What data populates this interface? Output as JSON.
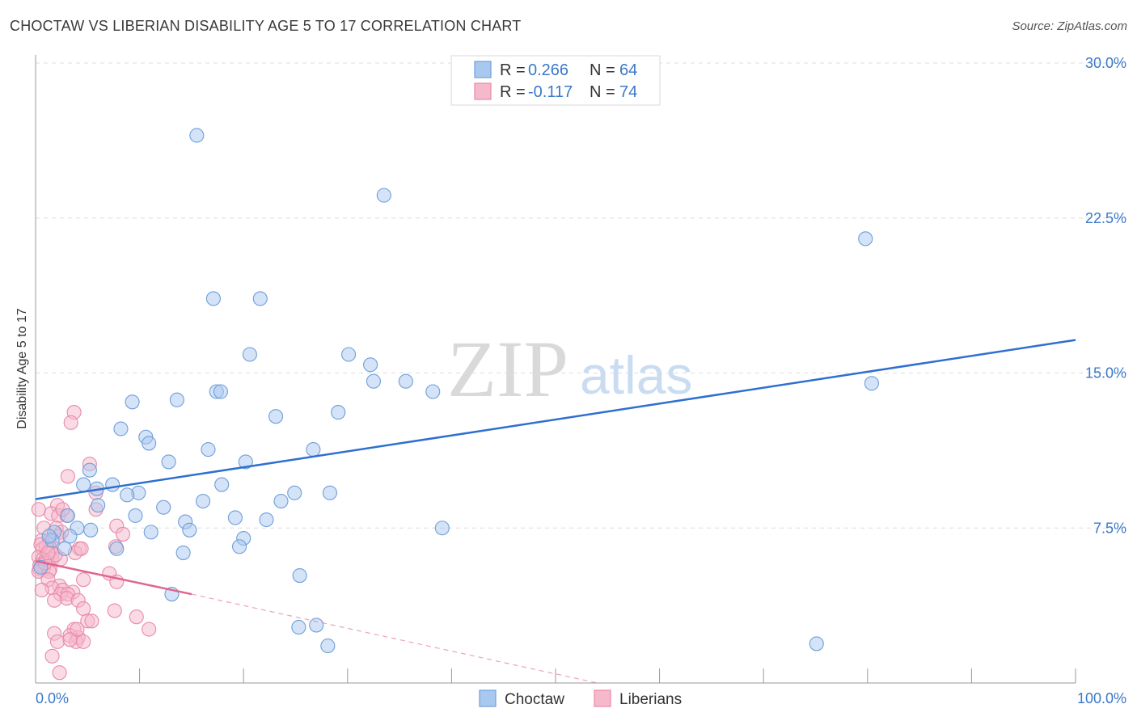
{
  "title": "CHOCTAW VS LIBERIAN DISABILITY AGE 5 TO 17 CORRELATION CHART",
  "source": "Source: ZipAtlas.com",
  "watermark": {
    "zip": "ZIP",
    "atlas": "atlas"
  },
  "legend": {
    "r_label": "R =",
    "n_label": "N =",
    "rows": [
      {
        "r": "0.266",
        "n": "64"
      },
      {
        "r": "-0.117",
        "n": "74"
      }
    ]
  },
  "colors": {
    "choctaw_fill": "#a9c8ef",
    "choctaw_stroke": "#6f9fd8",
    "choctaw_line": "#2e6fd0",
    "liberian_fill": "#f6b8cb",
    "liberian_stroke": "#e88aa8",
    "liberian_line": "#e0648e",
    "tick_label": "#3b78c9",
    "grid": "#dddddd"
  },
  "chart_data": {
    "type": "scatter",
    "title": "CHOCTAW VS LIBERIAN DISABILITY AGE 5 TO 17 CORRELATION CHART",
    "xlabel": "",
    "ylabel": "Disability Age 5 to 17",
    "xlim": [
      0,
      100
    ],
    "ylim": [
      0,
      30
    ],
    "x_tick_labels": [
      "0.0%",
      "100.0%"
    ],
    "y_ticks": [
      7.5,
      15.0,
      22.5,
      30.0
    ],
    "y_tick_labels": [
      "7.5%",
      "15.0%",
      "22.5%",
      "30.0%"
    ],
    "grid": true,
    "legend_position": "top-center",
    "series": [
      {
        "name": "Choctaw",
        "r": 0.266,
        "n": 64,
        "trend": {
          "x": [
            0,
            100
          ],
          "y": [
            8.9,
            16.6
          ],
          "style": "solid"
        },
        "points": [
          [
            15.5,
            26.5
          ],
          [
            33.5,
            23.6
          ],
          [
            79.8,
            21.5
          ],
          [
            17.1,
            18.6
          ],
          [
            21.6,
            18.6
          ],
          [
            20.6,
            15.9
          ],
          [
            30.1,
            15.9
          ],
          [
            32.2,
            15.4
          ],
          [
            32.5,
            14.6
          ],
          [
            35.6,
            14.6
          ],
          [
            38.2,
            14.1
          ],
          [
            80.4,
            14.5
          ],
          [
            17.4,
            14.1
          ],
          [
            17.8,
            14.1
          ],
          [
            9.3,
            13.6
          ],
          [
            13.6,
            13.7
          ],
          [
            23.1,
            12.9
          ],
          [
            29.1,
            13.1
          ],
          [
            8.2,
            12.3
          ],
          [
            10.6,
            11.9
          ],
          [
            10.9,
            11.6
          ],
          [
            16.6,
            11.3
          ],
          [
            26.7,
            11.3
          ],
          [
            12.8,
            10.7
          ],
          [
            20.2,
            10.7
          ],
          [
            5.2,
            10.3
          ],
          [
            4.6,
            9.6
          ],
          [
            7.4,
            9.6
          ],
          [
            5.9,
            9.4
          ],
          [
            9.9,
            9.2
          ],
          [
            17.9,
            9.6
          ],
          [
            24.9,
            9.2
          ],
          [
            28.3,
            9.2
          ],
          [
            6.0,
            8.6
          ],
          [
            8.8,
            9.1
          ],
          [
            12.3,
            8.5
          ],
          [
            16.1,
            8.8
          ],
          [
            23.6,
            8.8
          ],
          [
            9.6,
            8.1
          ],
          [
            14.4,
            7.8
          ],
          [
            19.2,
            8.0
          ],
          [
            22.2,
            7.9
          ],
          [
            4.0,
            7.5
          ],
          [
            14.8,
            7.4
          ],
          [
            11.1,
            7.3
          ],
          [
            5.3,
            7.4
          ],
          [
            39.1,
            7.5
          ],
          [
            1.8,
            7.3
          ],
          [
            3.3,
            7.1
          ],
          [
            20.0,
            7.0
          ],
          [
            1.6,
            6.9
          ],
          [
            19.6,
            6.6
          ],
          [
            7.8,
            6.5
          ],
          [
            2.8,
            6.5
          ],
          [
            14.2,
            6.3
          ],
          [
            25.4,
            5.2
          ],
          [
            13.1,
            4.3
          ],
          [
            27.0,
            2.8
          ],
          [
            25.3,
            2.7
          ],
          [
            28.1,
            1.8
          ],
          [
            75.1,
            1.9
          ],
          [
            3.1,
            8.1
          ],
          [
            0.5,
            5.6
          ],
          [
            1.3,
            7.1
          ]
        ]
      },
      {
        "name": "Liberians",
        "r": -0.117,
        "n": 74,
        "trend": {
          "x": [
            0,
            15
          ],
          "y": [
            5.9,
            4.3
          ],
          "style": "solid",
          "extension": {
            "x": [
              15,
              54
            ],
            "y": [
              4.3,
              0.0
            ],
            "style": "dashed"
          }
        },
        "points": [
          [
            3.7,
            13.1
          ],
          [
            3.4,
            12.6
          ],
          [
            5.2,
            10.6
          ],
          [
            3.1,
            10.0
          ],
          [
            5.8,
            9.2
          ],
          [
            5.8,
            8.4
          ],
          [
            2.1,
            8.6
          ],
          [
            0.3,
            8.4
          ],
          [
            1.5,
            8.2
          ],
          [
            2.2,
            8.1
          ],
          [
            3.0,
            8.1
          ],
          [
            7.8,
            7.6
          ],
          [
            8.4,
            7.2
          ],
          [
            0.8,
            7.5
          ],
          [
            2.0,
            7.5
          ],
          [
            2.5,
            7.3
          ],
          [
            2.2,
            7.1
          ],
          [
            0.6,
            6.9
          ],
          [
            1.3,
            6.9
          ],
          [
            7.7,
            6.6
          ],
          [
            0.7,
            6.5
          ],
          [
            1.4,
            6.5
          ],
          [
            4.2,
            6.5
          ],
          [
            1.6,
            6.3
          ],
          [
            3.8,
            6.3
          ],
          [
            0.3,
            6.1
          ],
          [
            0.7,
            6.0
          ],
          [
            1.6,
            6.0
          ],
          [
            2.4,
            6.0
          ],
          [
            0.9,
            5.9
          ],
          [
            0.4,
            5.7
          ],
          [
            0.8,
            5.6
          ],
          [
            1.4,
            5.5
          ],
          [
            0.4,
            5.5
          ],
          [
            0.3,
            5.4
          ],
          [
            1.3,
            5.4
          ],
          [
            4.4,
            6.5
          ],
          [
            7.1,
            5.3
          ],
          [
            1.2,
            5.0
          ],
          [
            4.6,
            5.0
          ],
          [
            7.8,
            4.9
          ],
          [
            2.3,
            4.7
          ],
          [
            1.6,
            4.6
          ],
          [
            0.6,
            4.5
          ],
          [
            2.6,
            4.5
          ],
          [
            3.6,
            4.4
          ],
          [
            2.4,
            4.3
          ],
          [
            3.1,
            4.3
          ],
          [
            3.0,
            4.1
          ],
          [
            1.8,
            4.0
          ],
          [
            4.1,
            4.0
          ],
          [
            4.6,
            3.6
          ],
          [
            7.6,
            3.5
          ],
          [
            5.0,
            3.0
          ],
          [
            9.7,
            3.2
          ],
          [
            5.4,
            3.0
          ],
          [
            3.7,
            2.6
          ],
          [
            10.9,
            2.6
          ],
          [
            1.8,
            2.4
          ],
          [
            4.1,
            2.2
          ],
          [
            3.3,
            2.3
          ],
          [
            2.1,
            2.0
          ],
          [
            3.9,
            2.0
          ],
          [
            4.6,
            2.0
          ],
          [
            1.6,
            1.3
          ],
          [
            2.3,
            0.5
          ],
          [
            1.0,
            6.6
          ],
          [
            0.9,
            5.8
          ],
          [
            1.9,
            6.2
          ],
          [
            4.0,
            2.6
          ],
          [
            0.5,
            6.7
          ],
          [
            3.3,
            2.1
          ],
          [
            2.6,
            8.4
          ],
          [
            1.2,
            6.3
          ]
        ]
      }
    ]
  }
}
